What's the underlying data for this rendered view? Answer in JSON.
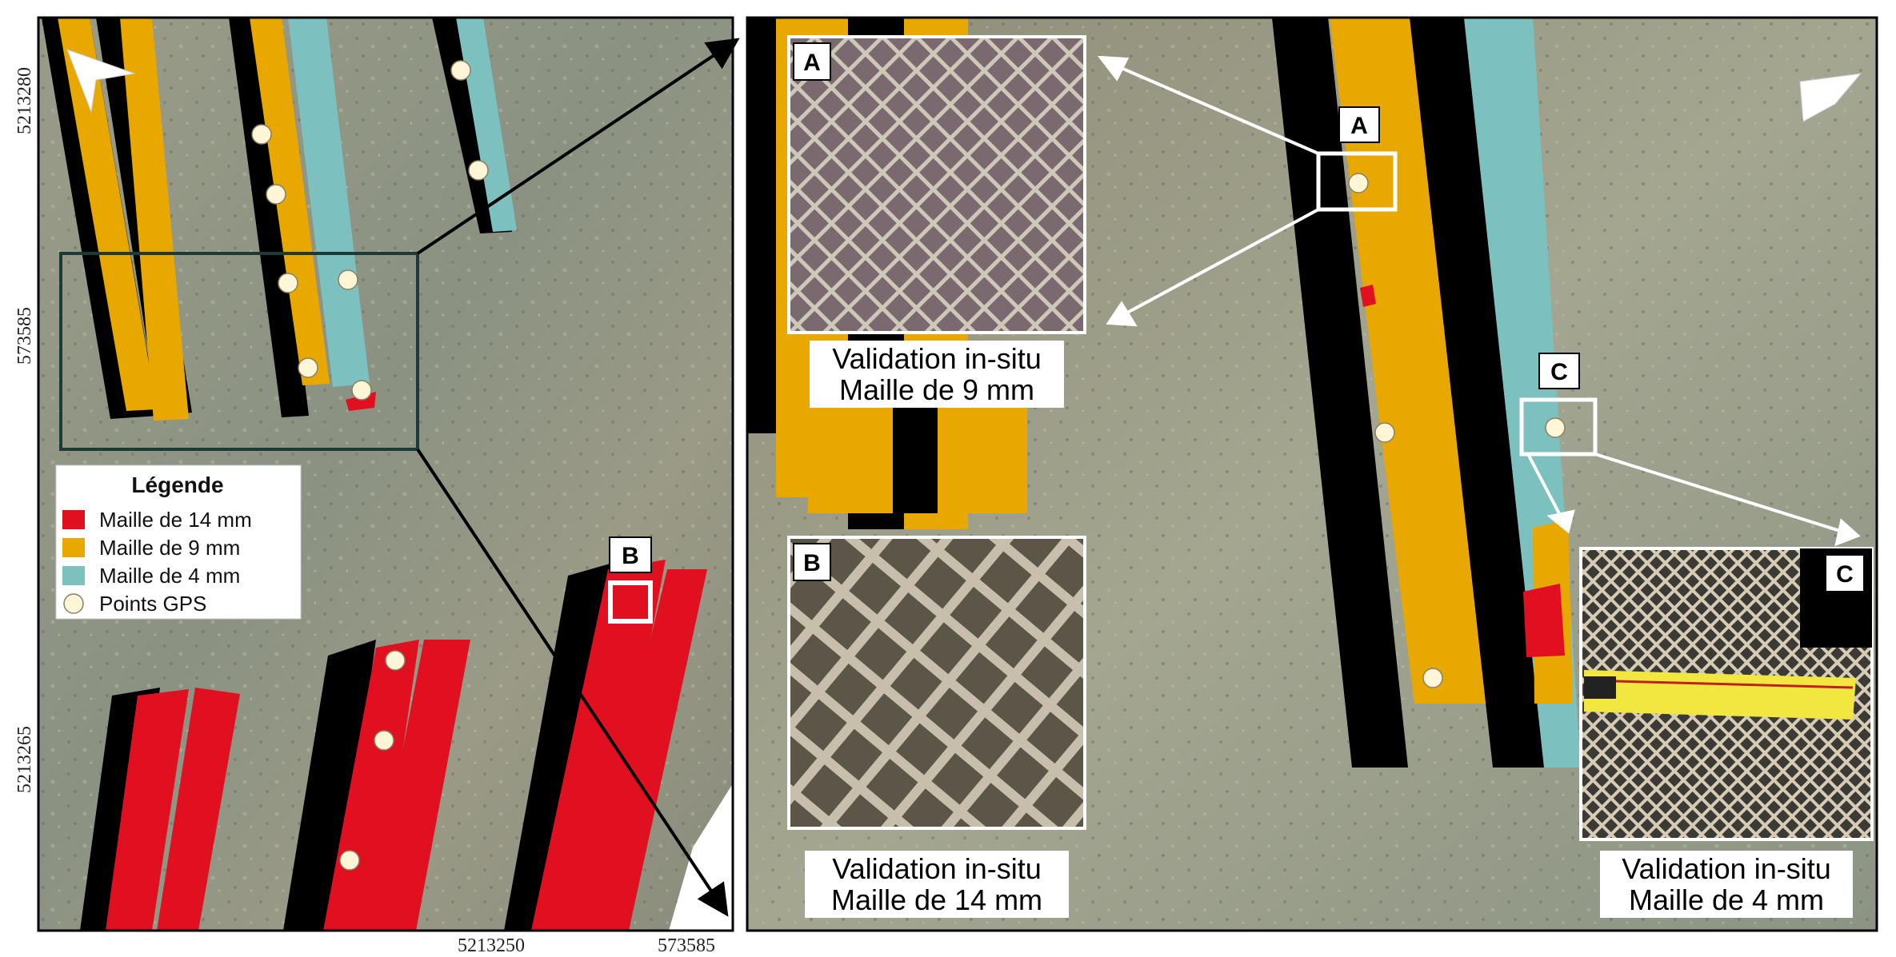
{
  "axes": {
    "left_top": "5213280",
    "left_middle": "573585",
    "left_bottom": "5213265",
    "bottom_middle": "5213250",
    "bottom_right": "573585"
  },
  "legend": {
    "title": "Légende",
    "items": [
      {
        "label": "Maille de 14 mm",
        "color": "#e01020",
        "shape": "square"
      },
      {
        "label": "Maille de 9 mm",
        "color": "#e8a800",
        "shape": "square"
      },
      {
        "label": "Maille de 4 mm",
        "color": "#7cc0c0",
        "shape": "square"
      },
      {
        "label": "Points GPS",
        "color": "#fff6d8",
        "shape": "circle"
      }
    ]
  },
  "labels": {
    "a": "A",
    "b": "B",
    "c": "C"
  },
  "captions": {
    "a": {
      "line1": "Validation in-situ",
      "line2": "Maille de 9 mm"
    },
    "b": {
      "line1": "Validation in-situ",
      "line2": "Maille de 14 mm"
    },
    "c": {
      "line1": "Validation in-situ",
      "line2": "Maille de 4 mm"
    }
  },
  "colors": {
    "mesh_14": "#e01020",
    "mesh_9": "#e8a800",
    "mesh_4": "#7cc0c0",
    "ground": "#8e9080",
    "frame": "#1e3a36"
  },
  "icons": [
    "north-arrow-icon",
    "callout-arrow-icon",
    "gps-point-icon"
  ]
}
